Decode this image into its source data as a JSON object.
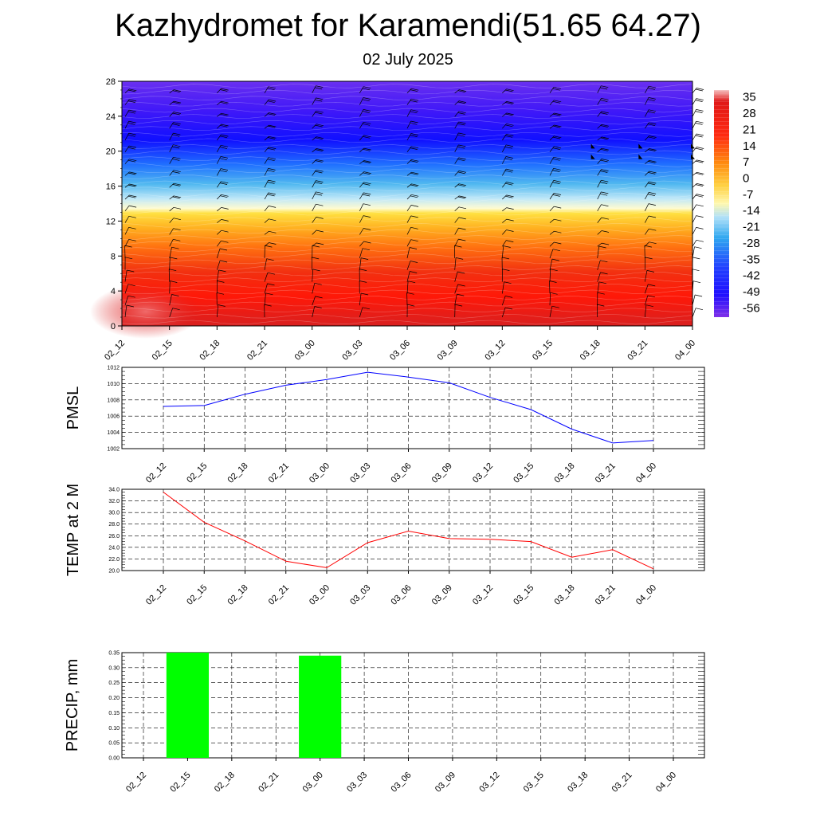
{
  "header": {
    "title": "Kazhydromet for Karamendi(51.65 64.27)",
    "subtitle": "02 July 2025"
  },
  "chart_data": [
    {
      "type": "heatmap",
      "name": "temperature-wind-cross-section",
      "x_categories": [
        "02_12",
        "02_15",
        "02_18",
        "02_21",
        "03_00",
        "03_03",
        "03_06",
        "03_09",
        "03_12",
        "03_15",
        "03_18",
        "03_21",
        "04_00"
      ],
      "y_ticks": [
        0,
        4,
        8,
        12,
        16,
        20,
        24,
        28
      ],
      "ylim": [
        0,
        28
      ],
      "colorbar_ticks": [
        35,
        28,
        21,
        14,
        7,
        0,
        -7,
        -14,
        -21,
        -28,
        -35,
        -42,
        -49,
        -56
      ],
      "colorbar_range": [
        -60,
        38
      ],
      "colormap": [
        "#7a1fe8",
        "#3a10ff",
        "#2050ff",
        "#3fa0f0",
        "#a8e0f5",
        "#fff8a0",
        "#ffd030",
        "#ff9010",
        "#ff3010",
        "#e81010",
        "#d81818",
        "#f0a0a0"
      ],
      "overlay": "wind-barbs"
    },
    {
      "type": "line",
      "name": "pmsl",
      "ylabel": "PMSL",
      "categories": [
        "02_12",
        "02_15",
        "02_18",
        "02_21",
        "03_00",
        "03_03",
        "03_06",
        "03_09",
        "03_12",
        "03_15",
        "03_18",
        "03_21",
        "04_00"
      ],
      "values": [
        1007.2,
        1007.3,
        1008.7,
        1009.8,
        1010.5,
        1011.4,
        1010.8,
        1010.1,
        1008.3,
        1006.8,
        1004.4,
        1002.7,
        1003.0
      ],
      "ylim": [
        1002,
        1012
      ],
      "y_ticks": [
        1002,
        1004,
        1006,
        1008,
        1010,
        1012
      ],
      "color": "#0000ff",
      "grid": true
    },
    {
      "type": "line",
      "name": "temp-2m",
      "ylabel": "TEMP at 2 M",
      "categories": [
        "02_12",
        "02_15",
        "02_18",
        "02_21",
        "03_00",
        "03_03",
        "03_06",
        "03_09",
        "03_12",
        "03_15",
        "03_18",
        "03_21",
        "04_00"
      ],
      "values": [
        33.5,
        28.3,
        25.1,
        21.6,
        20.5,
        24.8,
        26.8,
        25.5,
        25.4,
        25.0,
        22.3,
        23.6,
        20.3
      ],
      "ylim": [
        20,
        34
      ],
      "y_ticks": [
        "20.0",
        "22.0",
        "24.0",
        "26.0",
        "28.0",
        "30.0",
        "32.0",
        "34.0"
      ],
      "color": "#ff0000",
      "grid": true
    },
    {
      "type": "bar",
      "name": "precip",
      "ylabel": "PRECIP, mm",
      "categories": [
        "02_12",
        "02_15",
        "02_18",
        "02_21",
        "03_00",
        "03_03",
        "03_06",
        "03_09",
        "03_12",
        "03_15",
        "03_18",
        "03_21",
        "04_00"
      ],
      "values": [
        0,
        0.35,
        0,
        0,
        0.34,
        0,
        0,
        0,
        0,
        0,
        0,
        0,
        0
      ],
      "ylim": [
        0,
        0.35
      ],
      "y_ticks": [
        "0.00",
        "0.05",
        "0.10",
        "0.15",
        "0.20",
        "0.25",
        "0.30",
        "0.35"
      ],
      "color": "#00ff00",
      "grid": true
    }
  ]
}
